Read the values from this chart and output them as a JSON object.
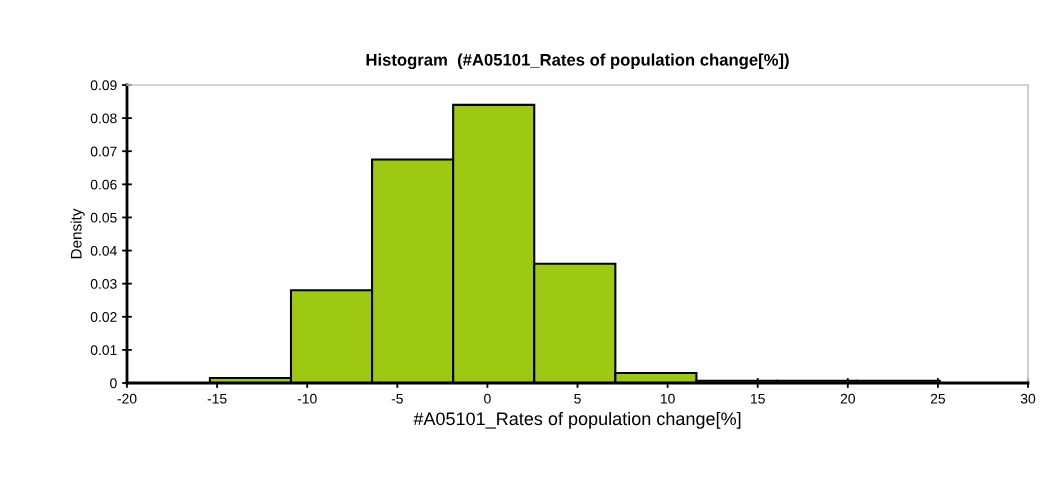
{
  "chart_data": {
    "type": "histogram",
    "title": "Histogram  (#A05101_Rates of population change[%])",
    "xlabel": "#A05101_Rates of population change[%]",
    "ylabel": "Density",
    "bins": [
      -15.4,
      -10.9,
      -6.4,
      -1.9,
      2.6,
      7.1,
      11.6,
      16.1,
      20.5,
      25.1
    ],
    "values": [
      0.0015,
      0.028,
      0.0675,
      0.084,
      0.036,
      0.003,
      0.0007,
      0.0007,
      0.0007
    ],
    "color": "#9dc913",
    "xlim": [
      -20,
      30
    ],
    "xticks": [
      -20,
      -15,
      -10,
      -5,
      0,
      5,
      10,
      15,
      20,
      25,
      30
    ],
    "ylim": [
      0,
      0.09
    ],
    "yticks": [
      0,
      0.01,
      0.02,
      0.03,
      0.04,
      0.05,
      0.06,
      0.07,
      0.08,
      0.09
    ],
    "grid": false,
    "legend": false
  }
}
